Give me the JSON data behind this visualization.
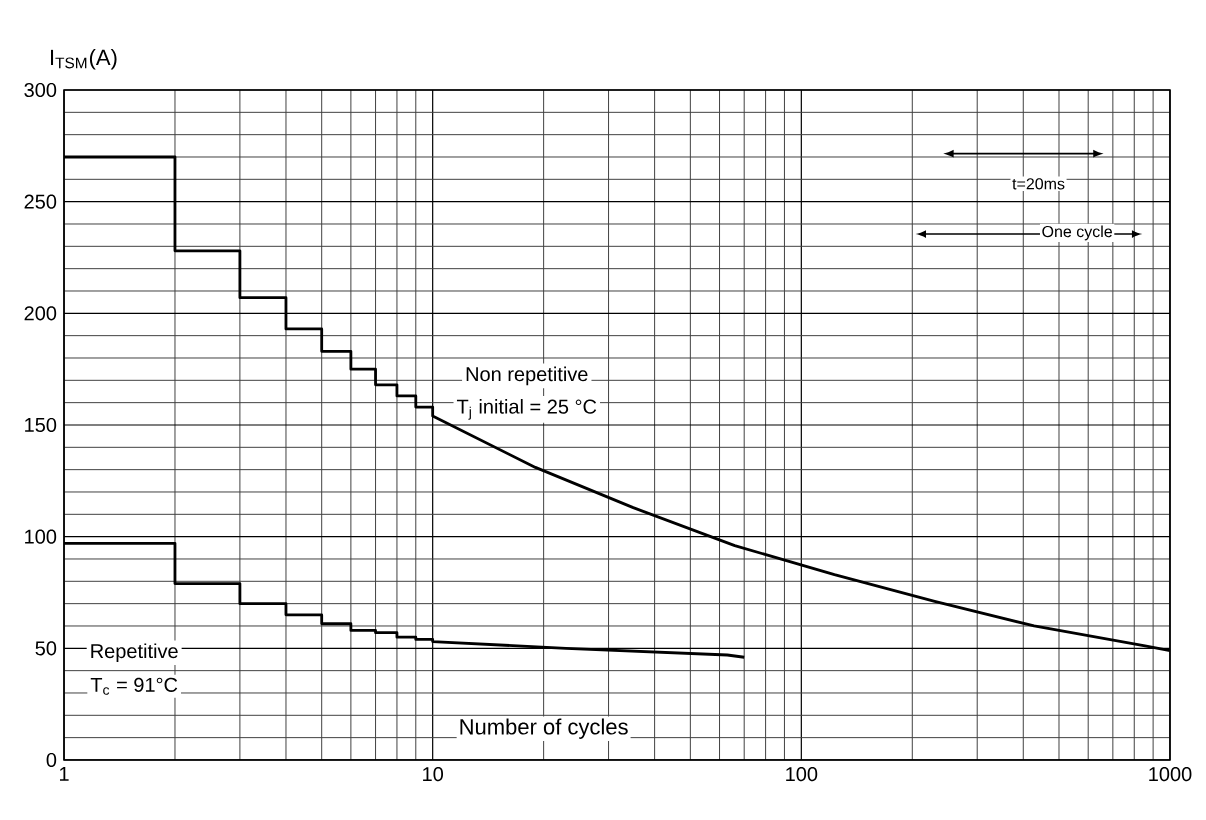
{
  "chart_data": {
    "type": "line",
    "ylabel": "I$_{TSM}$(A)",
    "xlabel": "Number of cycles",
    "log": "x",
    "grid": true,
    "xlim": [
      1,
      1000
    ],
    "ylim": [
      0,
      300
    ],
    "xticks": [
      1,
      10,
      100,
      1000
    ],
    "yticks": [
      0,
      50,
      100,
      150,
      200,
      250,
      300
    ],
    "series": [
      {
        "color": "#000000",
        "x": [
          1,
          2,
          2,
          3,
          3,
          4,
          4,
          5,
          5,
          6,
          6,
          7,
          7,
          8,
          8,
          9,
          9,
          10,
          10,
          19,
          35,
          66,
          123,
          230,
          428,
          863,
          1000
        ],
        "values": [
          270,
          270,
          228,
          228,
          207,
          207,
          193,
          193,
          183,
          183,
          175,
          175,
          168,
          168,
          163,
          163,
          158,
          158,
          154,
          131,
          113,
          96,
          83,
          71,
          60,
          51,
          49
        ]
      },
      {
        "color": "#000000",
        "x": [
          1,
          2,
          2,
          3,
          3,
          4,
          4,
          5,
          5,
          6,
          6,
          7,
          7,
          8,
          8,
          9,
          9,
          10,
          10,
          23,
          63,
          70
        ],
        "values": [
          97,
          97,
          79,
          79,
          70,
          70,
          65,
          65,
          61,
          61,
          58,
          58,
          57,
          57,
          55,
          55,
          54,
          54,
          53,
          50,
          47,
          46
        ]
      }
    ],
    "annotations": [
      "Non repetitive",
      "T$_{j}$ initial = 25 °C",
      "Repetitive",
      "T$_{c}$ = 91°C",
      "t=20ms",
      "One cycle"
    ]
  }
}
